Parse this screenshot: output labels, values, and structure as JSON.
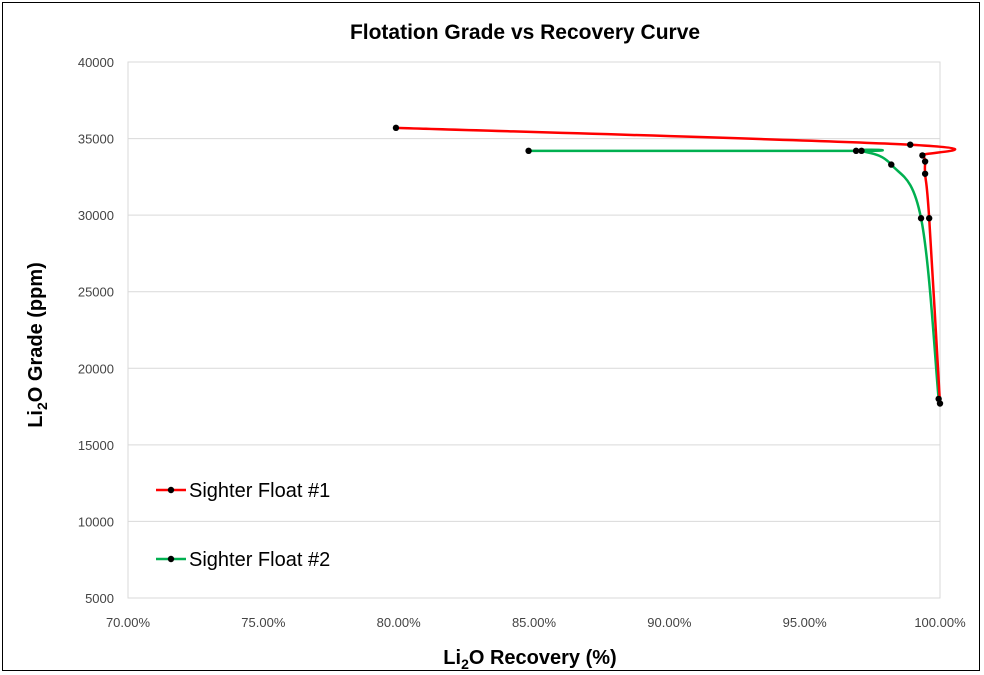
{
  "chart_data": {
    "type": "line",
    "title": "Flotation Grade vs Recovery Curve",
    "xlabel": {
      "pre": "Li",
      "sub": "2",
      "post": "O Recovery (%)"
    },
    "ylabel": {
      "pre": "Li",
      "sub": "2",
      "post": "O Grade (ppm)"
    },
    "xlim": [
      70,
      100
    ],
    "ylim": [
      5000,
      40000
    ],
    "xticks": [
      70,
      75,
      80,
      85,
      90,
      95,
      100
    ],
    "xtick_labels": [
      "70.00%",
      "75.00%",
      "80.00%",
      "85.00%",
      "90.00%",
      "95.00%",
      "100.00%"
    ],
    "yticks": [
      5000,
      10000,
      15000,
      20000,
      25000,
      30000,
      35000,
      40000
    ],
    "ytick_labels": [
      "5000",
      "10000",
      "15000",
      "20000",
      "25000",
      "30000",
      "35000",
      "40000"
    ],
    "grid": "horizontal",
    "legend_position": "bottom-left",
    "series": [
      {
        "name": "Sighter Float #1",
        "color": "#ff0000",
        "points": [
          [
            79.9,
            35700
          ],
          [
            98.9,
            34600
          ],
          [
            99.35,
            33900
          ],
          [
            99.45,
            33500
          ],
          [
            99.45,
            32700
          ],
          [
            99.6,
            29800
          ],
          [
            100.0,
            17700
          ]
        ]
      },
      {
        "name": "Sighter Float #2",
        "color": "#00b050",
        "points": [
          [
            84.8,
            34200
          ],
          [
            96.9,
            34200
          ],
          [
            97.1,
            34200
          ],
          [
            98.2,
            33300
          ],
          [
            99.3,
            29800
          ],
          [
            99.95,
            18000
          ]
        ]
      }
    ]
  }
}
